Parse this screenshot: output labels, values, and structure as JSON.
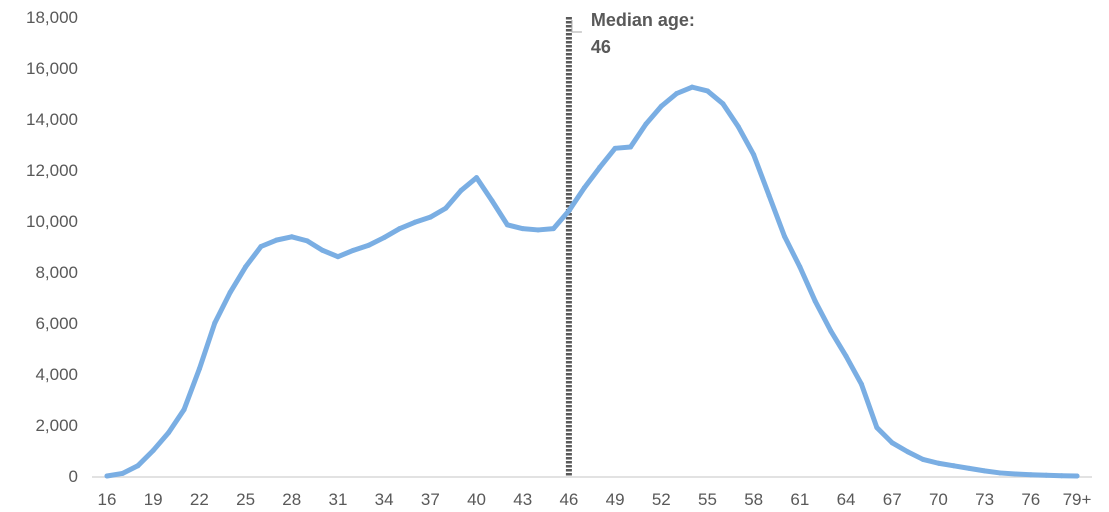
{
  "chart_data": {
    "type": "line",
    "title": "",
    "xlabel": "",
    "ylabel": "",
    "legend": "none",
    "grid": false,
    "colors": {
      "series": "#7aaee3",
      "median_line": "#595959",
      "text": "#595959",
      "axis": "#d9d9d9"
    },
    "ylim": [
      0,
      18000
    ],
    "y_ticks": [
      0,
      2000,
      4000,
      6000,
      8000,
      10000,
      12000,
      14000,
      16000,
      18000
    ],
    "y_tick_labels": [
      "0",
      "2,000",
      "4,000",
      "6,000",
      "8,000",
      "10,000",
      "12,000",
      "14,000",
      "16,000",
      "18,000"
    ],
    "categories": [
      "16",
      "17",
      "18",
      "19",
      "20",
      "21",
      "22",
      "23",
      "24",
      "25",
      "26",
      "27",
      "28",
      "29",
      "30",
      "31",
      "32",
      "33",
      "34",
      "35",
      "36",
      "37",
      "38",
      "39",
      "40",
      "41",
      "42",
      "43",
      "44",
      "45",
      "46",
      "47",
      "48",
      "49",
      "50",
      "51",
      "52",
      "53",
      "54",
      "55",
      "56",
      "57",
      "58",
      "59",
      "60",
      "61",
      "62",
      "63",
      "64",
      "65",
      "66",
      "67",
      "68",
      "69",
      "70",
      "71",
      "72",
      "73",
      "74",
      "75",
      "76",
      "77",
      "78",
      "79+"
    ],
    "x_tick_labels": [
      "16",
      "19",
      "22",
      "25",
      "28",
      "31",
      "34",
      "37",
      "40",
      "43",
      "46",
      "49",
      "52",
      "55",
      "58",
      "61",
      "64",
      "67",
      "70",
      "73",
      "76",
      "79+"
    ],
    "series": [
      {
        "values": [
          0,
          100,
          400,
          1000,
          1700,
          2600,
          4200,
          6000,
          7200,
          8200,
          9000,
          9250,
          9380,
          9220,
          8850,
          8600,
          8850,
          9050,
          9350,
          9700,
          9950,
          10150,
          10500,
          11200,
          11700,
          10800,
          9850,
          9700,
          9650,
          9700,
          10400,
          11300,
          12100,
          12850,
          12900,
          13800,
          14500,
          15000,
          15250,
          15100,
          14600,
          13700,
          12600,
          11000,
          9400,
          8200,
          6850,
          5700,
          4700,
          3600,
          1900,
          1300,
          950,
          650,
          500,
          400,
          300,
          200,
          120,
          80,
          50,
          30,
          10,
          0
        ]
      }
    ],
    "annotations": [
      {
        "type": "vertical-line",
        "x": "46",
        "label_line1": "Median age:",
        "label_line2": "46"
      }
    ]
  }
}
